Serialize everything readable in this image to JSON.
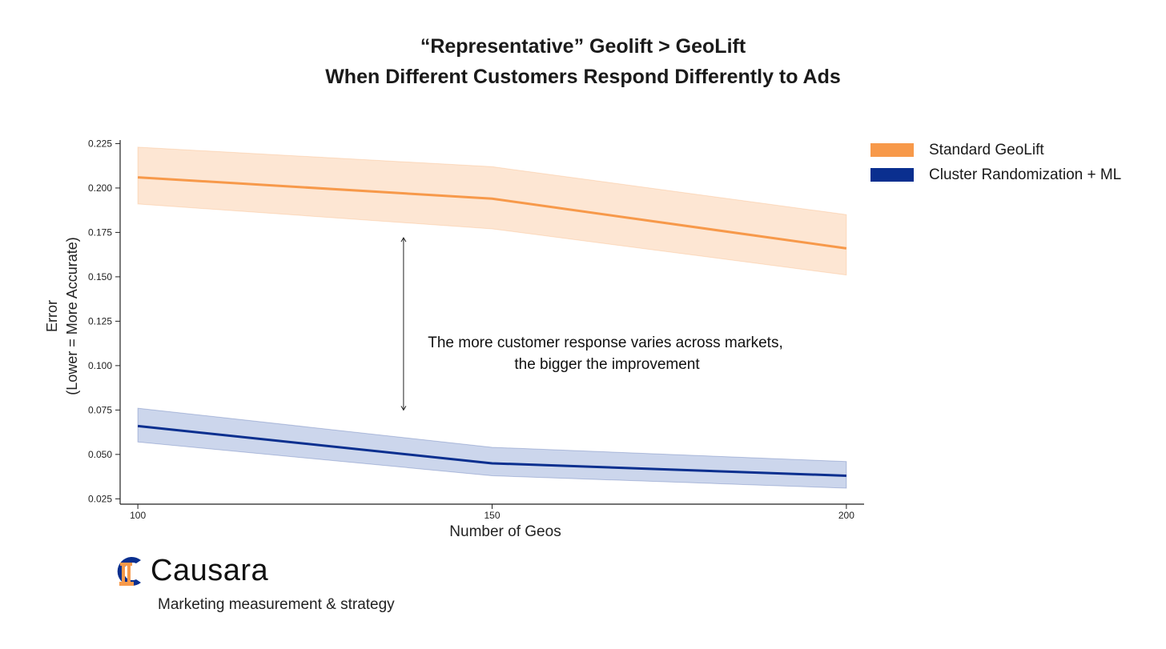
{
  "header": {
    "title_line1": "“Representative” Geolift > GeoLift",
    "title_line2": "When Different Customers Respond Differently to Ads"
  },
  "colors": {
    "orange": "#f7994a",
    "orange_band": "#fde6d3",
    "blue": "#0a2f8f",
    "blue_band": "#ccd6ec"
  },
  "chart_data": {
    "type": "line",
    "title": "“Representative” Geolift > GeoLift / When Different Customers Respond Differently to Ads",
    "xlabel": "Number of Geos",
    "ylabel_line1": "Error",
    "ylabel_line2": "(Lower = More Accurate)",
    "x": [
      100,
      150,
      200
    ],
    "xlim": [
      97.5,
      202.5
    ],
    "ylim": [
      0.022,
      0.227
    ],
    "x_ticks": [
      100,
      150,
      200
    ],
    "x_tick_labels": [
      "100",
      "150",
      "200"
    ],
    "y_ticks": [
      0.025,
      0.05,
      0.075,
      0.1,
      0.125,
      0.15,
      0.175,
      0.2,
      0.225
    ],
    "y_tick_labels": [
      "0.025",
      "0.050",
      "0.075",
      "0.100",
      "0.125",
      "0.150",
      "0.175",
      "0.200",
      "0.225"
    ],
    "series": [
      {
        "name": "Standard GeoLift",
        "values": [
          0.206,
          0.194,
          0.166
        ],
        "lower": [
          0.191,
          0.177,
          0.151
        ],
        "upper": [
          0.223,
          0.212,
          0.185
        ]
      },
      {
        "name": "Cluster Randomization + ML",
        "values": [
          0.066,
          0.045,
          0.038
        ],
        "lower": [
          0.057,
          0.038,
          0.031
        ],
        "upper": [
          0.076,
          0.054,
          0.046
        ]
      }
    ],
    "annotation": {
      "line1": "The more customer response varies across markets,",
      "line2": "the bigger the improvement",
      "arrow_x": 137.5,
      "arrow_y_top": 0.172,
      "arrow_y_bottom": 0.075
    },
    "legend_position": "top-right outside"
  },
  "brand": {
    "name": "Causara",
    "tagline": "Marketing measurement & strategy"
  }
}
